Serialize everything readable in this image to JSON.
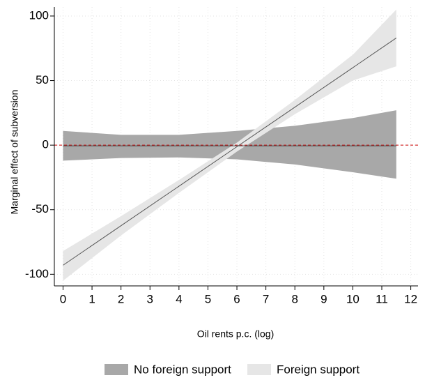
{
  "chart_data": {
    "type": "band-line",
    "x_label": "Oil rents p.c. (log)",
    "y_label": "Marginal effect of subversion",
    "x": [
      0,
      2,
      4,
      6,
      8,
      10,
      11.5
    ],
    "series": [
      {
        "name": "No foreign support",
        "color": "#a8a8a8",
        "line_color": "#444444",
        "values": [
          -0.5,
          -0.5,
          -0.5,
          -0.5,
          -0.5,
          -0.5,
          -0.5
        ],
        "lower": [
          -12,
          -10,
          -9.5,
          -11,
          -15,
          -21,
          -26
        ],
        "upper": [
          11,
          8,
          8,
          11,
          15,
          21,
          27
        ]
      },
      {
        "name": "Foreign support",
        "color": "#e6e6e6",
        "line_color": "#555555",
        "values": [
          -93,
          -62.4,
          -31.8,
          -1.2,
          29.4,
          60,
          83
        ],
        "lower": [
          -105,
          -70,
          -37,
          -5,
          24,
          50,
          61
        ],
        "upper": [
          -82,
          -55,
          -27,
          2,
          35,
          70,
          105
        ]
      }
    ],
    "reference_line": {
      "value": 0,
      "color": "#cc0000"
    },
    "xlim": [
      -0.3,
      12.25
    ],
    "ylim": [
      -109,
      107
    ],
    "xticks": [
      0,
      1,
      2,
      3,
      4,
      5,
      6,
      7,
      8,
      9,
      10,
      11,
      12
    ],
    "yticks": [
      -100,
      -50,
      0,
      50,
      100
    ],
    "grid": true,
    "legend": "bottom"
  }
}
